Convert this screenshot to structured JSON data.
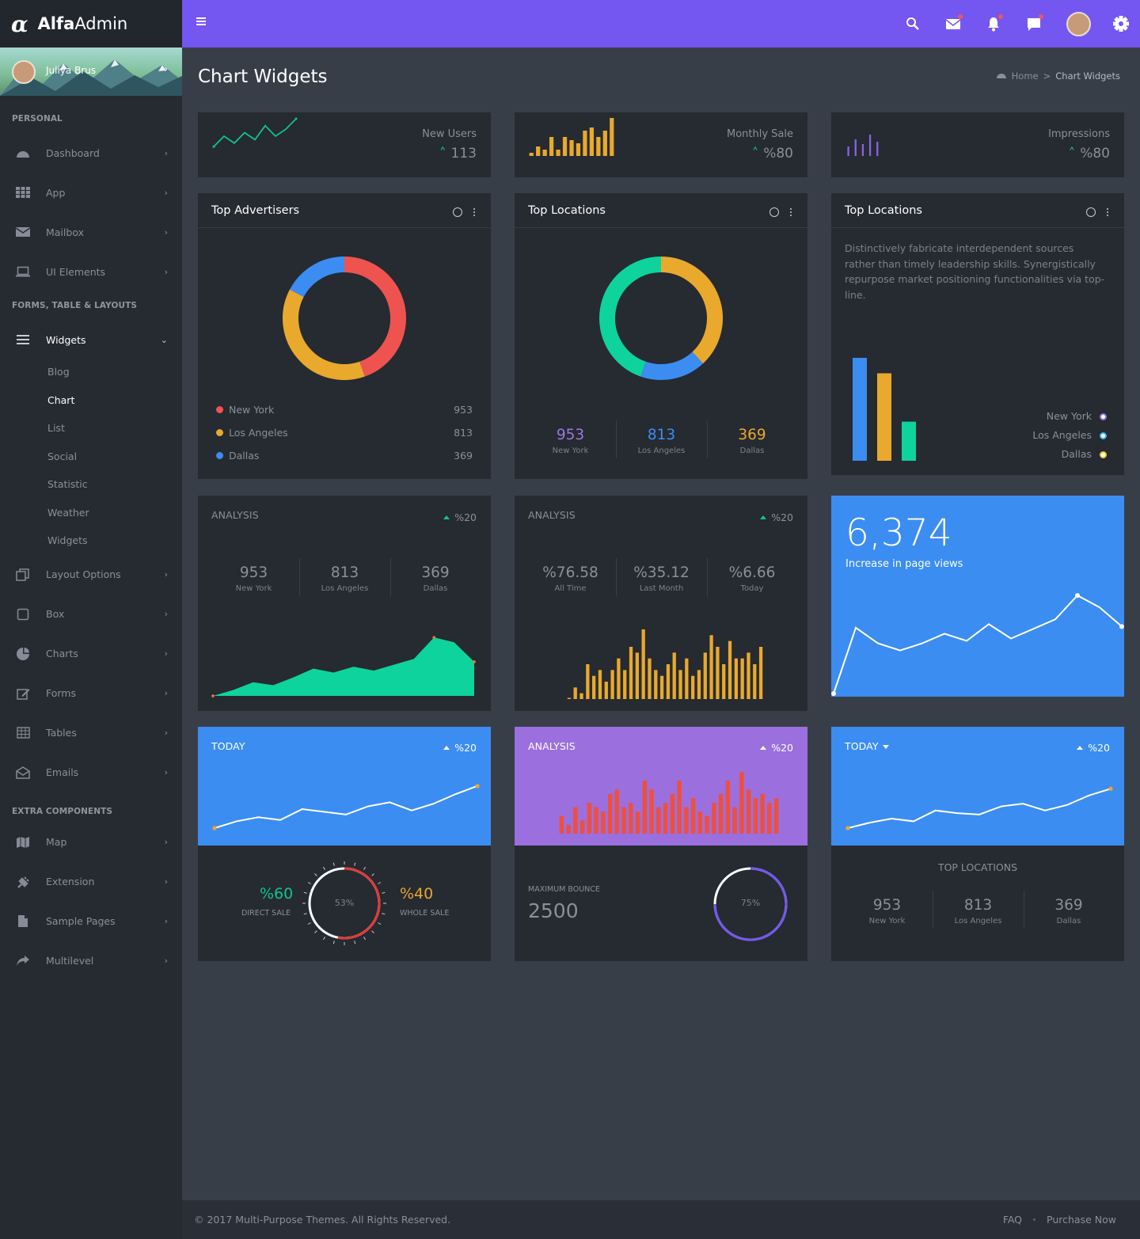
{
  "brand": {
    "bold": "Alfa",
    "light": "Admin"
  },
  "user": {
    "name": "Juliya Brus"
  },
  "sidebar": {
    "sections": [
      "PERSONAL",
      "FORMS, TABLE & LAYOUTS",
      "EXTRA COMPONENTS"
    ],
    "personal": [
      {
        "label": "Dashboard",
        "icon": "palette-icon"
      },
      {
        "label": "App",
        "icon": "grid-icon"
      },
      {
        "label": "Mailbox",
        "icon": "envelope-icon"
      },
      {
        "label": "UI Elements",
        "icon": "laptop-icon"
      }
    ],
    "forms": {
      "widgets": {
        "label": "Widgets",
        "icon": "bars-icon"
      },
      "submenu": [
        "Blog",
        "Chart",
        "List",
        "Social",
        "Statistic",
        "Weather",
        "Widgets"
      ],
      "active_sub": "Chart",
      "rest": [
        {
          "label": "Layout Options",
          "icon": "copy-icon"
        },
        {
          "label": "Box",
          "icon": "square-icon"
        },
        {
          "label": "Charts",
          "icon": "pie-icon"
        },
        {
          "label": "Forms",
          "icon": "edit-icon"
        },
        {
          "label": "Tables",
          "icon": "table-icon"
        },
        {
          "label": "Emails",
          "icon": "envelope-open-icon"
        }
      ]
    },
    "extra": [
      {
        "label": "Map",
        "icon": "map-icon"
      },
      {
        "label": "Extension",
        "icon": "plug-icon"
      },
      {
        "label": "Sample Pages",
        "icon": "file-icon"
      },
      {
        "label": "Multilevel",
        "icon": "share-icon"
      }
    ]
  },
  "page": {
    "title": "Chart Widgets",
    "breadcrumb": {
      "home": "Home",
      "sep": ">",
      "current": "Chart Widgets"
    }
  },
  "kpis": [
    {
      "label": "New Users",
      "value": "113"
    },
    {
      "label": "Monthly Sale",
      "value": "%80"
    },
    {
      "label": "Impressions",
      "value": "%80"
    }
  ],
  "colors": {
    "accent": "#7456f1",
    "red": "#ef5350",
    "yellow": "#e8a92d",
    "blue": "#3b8df1",
    "green": "#0ed39c",
    "purple": "#9b77df",
    "teal": "#10c48c"
  },
  "top_advertisers": {
    "title": "Top Advertisers",
    "items": [
      {
        "label": "New York",
        "value": "953",
        "color": "#ef5350"
      },
      {
        "label": "Los Angeles",
        "value": "813",
        "color": "#e8a92d"
      },
      {
        "label": "Dallas",
        "value": "369",
        "color": "#3b8df1"
      }
    ]
  },
  "top_locations_donut": {
    "title": "Top Locations",
    "items": [
      {
        "label": "New York",
        "value": "953",
        "color": "#9b77df"
      },
      {
        "label": "Los Angeles",
        "value": "813",
        "color": "#3b8df1"
      },
      {
        "label": "Dallas",
        "value": "369",
        "color": "#e8a92d"
      }
    ]
  },
  "top_locations_bar": {
    "title": "Top Locations",
    "text": "Distinctively fabricate interdependent sources rather than timely leadership skills. Synergistically repurpose market positioning functionalities via top-line.",
    "legend": [
      {
        "label": "New York",
        "color": "#9b77df"
      },
      {
        "label": "Los Angeles",
        "color": "#3bb8f1"
      },
      {
        "label": "Dallas",
        "color": "#e8d03a"
      }
    ]
  },
  "analysis1": {
    "title": "ANALYSIS",
    "pct": "%20",
    "stats": [
      {
        "n": "953",
        "l": "New York"
      },
      {
        "n": "813",
        "l": "Los Angeles"
      },
      {
        "n": "369",
        "l": "Dallas"
      }
    ]
  },
  "analysis2": {
    "title": "ANALYSIS",
    "pct": "%20",
    "stats": [
      {
        "n": "%76.58",
        "l": "All Time"
      },
      {
        "n": "%35.12",
        "l": "Last Month"
      },
      {
        "n": "%6.66",
        "l": "Today"
      }
    ]
  },
  "pageviews": {
    "value": "6,374",
    "label": "Increase in page views"
  },
  "today1": {
    "title": "TODAY",
    "pct": "%20",
    "direct_pct": "%60",
    "direct_label": "DIRECT SALE",
    "gauge": "53%",
    "whole_pct": "%40",
    "whole_label": "WHOLE SALE"
  },
  "analysis3": {
    "title": "ANALYSIS",
    "pct": "%20",
    "bounce_label": "MAXIMUM BOUNCE",
    "bounce_value": "2500",
    "gauge": "75%"
  },
  "today2": {
    "title": "TODAY",
    "pct": "%20",
    "section": "TOP LOCATIONS",
    "stats": [
      {
        "n": "953",
        "l": "New York"
      },
      {
        "n": "813",
        "l": "Los Angeles"
      },
      {
        "n": "369",
        "l": "Dallas"
      }
    ]
  },
  "footer": {
    "copyright": "© 2017 Multi-Purpose Themes. All Rights Reserved.",
    "faq": "FAQ",
    "purchase": "Purchase Now"
  },
  "chart_data": [
    {
      "type": "line",
      "name": "new-users-sparkline",
      "values": [
        2,
        5,
        3,
        6,
        4,
        8,
        5,
        7,
        10
      ]
    },
    {
      "type": "bar",
      "name": "monthly-sale-sparkline",
      "values": [
        1,
        3,
        2,
        6,
        2,
        6,
        5,
        4,
        8,
        9,
        6,
        8,
        12
      ]
    },
    {
      "type": "bar",
      "name": "impressions-sparkline",
      "values": [
        4,
        7,
        5,
        9,
        6,
        10,
        8,
        12,
        9,
        14,
        11,
        16
      ]
    },
    {
      "type": "pie",
      "name": "top-advertisers-donut",
      "labels": [
        "New York",
        "Los Angeles",
        "Dallas"
      ],
      "values": [
        953,
        813,
        369
      ]
    },
    {
      "type": "pie",
      "name": "top-locations-donut",
      "labels": [
        "Los Angeles",
        "Dallas",
        "New York"
      ],
      "values": [
        813,
        369,
        953
      ]
    },
    {
      "type": "bar",
      "name": "top-locations-bars",
      "categories": [
        "New York",
        "Los Angeles",
        "Dallas"
      ],
      "values": [
        100,
        85,
        38
      ]
    },
    {
      "type": "area",
      "name": "analysis-area",
      "values": [
        0,
        6,
        14,
        11,
        19,
        28,
        24,
        30,
        26,
        32,
        38,
        60,
        55,
        35
      ],
      "ylim": [
        0,
        65
      ]
    },
    {
      "type": "bar",
      "name": "analysis-bars",
      "values": [
        0,
        2,
        1,
        6,
        4,
        5,
        3,
        5,
        7,
        5,
        9,
        8,
        12,
        7,
        5,
        4,
        6,
        8,
        5,
        7,
        4,
        5,
        8,
        11,
        9,
        6,
        10,
        7,
        7,
        8,
        6,
        9
      ]
    },
    {
      "type": "line",
      "name": "page-views-line",
      "values": [
        0,
        55,
        42,
        36,
        42,
        50,
        44,
        58,
        46,
        54,
        62,
        82,
        72,
        56
      ]
    },
    {
      "type": "line",
      "name": "today-line-1",
      "values": [
        0,
        10,
        16,
        12,
        28,
        24,
        20,
        32,
        38,
        26,
        36,
        50,
        62
      ]
    },
    {
      "type": "bar",
      "name": "analysis-red-bars",
      "values": [
        4,
        2,
        6,
        3,
        7,
        6,
        5,
        9,
        10,
        6,
        7,
        5,
        12,
        10,
        6,
        7,
        9,
        12,
        6,
        8,
        5,
        4,
        7,
        9,
        12,
        6,
        14,
        10,
        8,
        9,
        7,
        8
      ]
    },
    {
      "type": "line",
      "name": "today-line-2",
      "values": [
        0,
        8,
        14,
        10,
        26,
        22,
        20,
        32,
        36,
        26,
        34,
        48,
        58
      ]
    }
  ]
}
